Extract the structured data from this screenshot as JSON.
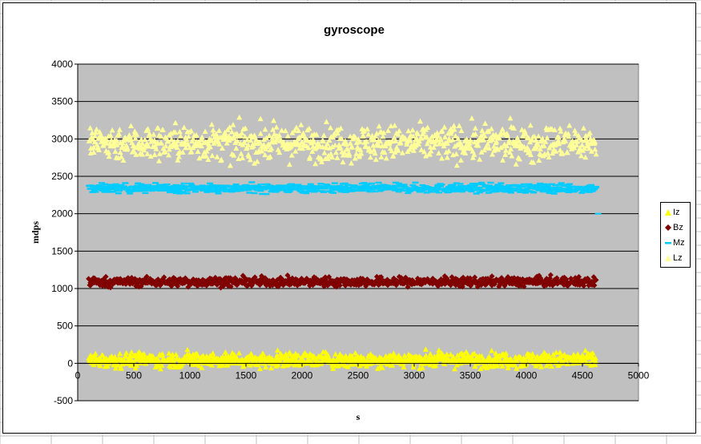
{
  "window": {
    "gridline_color": "#c0c0c0"
  },
  "chart_data": {
    "type": "scatter",
    "title": "gyroscope",
    "xlabel": "s",
    "ylabel": "mdps",
    "xlim": [
      0,
      5000
    ],
    "ylim": [
      -500,
      4000
    ],
    "x_ticks": [
      "0",
      "500",
      "1000",
      "1500",
      "2000",
      "2500",
      "3000",
      "3500",
      "4000",
      "4500",
      "5000"
    ],
    "y_ticks": [
      "4000",
      "3500",
      "3000",
      "2500",
      "2000",
      "1500",
      "1000",
      "500",
      "0",
      "-500"
    ],
    "grid": true,
    "plot_background": "#c0c0c0",
    "legend_position": "right",
    "series": [
      {
        "name": "Iz",
        "color": "#ffff00",
        "marker": "triangle",
        "x_range": [
          100,
          4620
        ],
        "center": 50,
        "spread": 90,
        "min": -80,
        "max": 240
      },
      {
        "name": "Bz",
        "color": "#800000",
        "marker": "diamond",
        "x_range": [
          100,
          4620
        ],
        "center": 1090,
        "spread": 55,
        "min": 950,
        "max": 1240
      },
      {
        "name": "Mz",
        "color": "#00ccff",
        "marker": "dash",
        "x_range": [
          100,
          4620
        ],
        "center": 2340,
        "spread": 55,
        "min": 2200,
        "max": 2480
      },
      {
        "name": "Lz",
        "color": "#ffff99",
        "marker": "triangle",
        "x_range": [
          100,
          4620
        ],
        "center": 2950,
        "spread": 210,
        "min": 2150,
        "max": 3650
      }
    ]
  }
}
